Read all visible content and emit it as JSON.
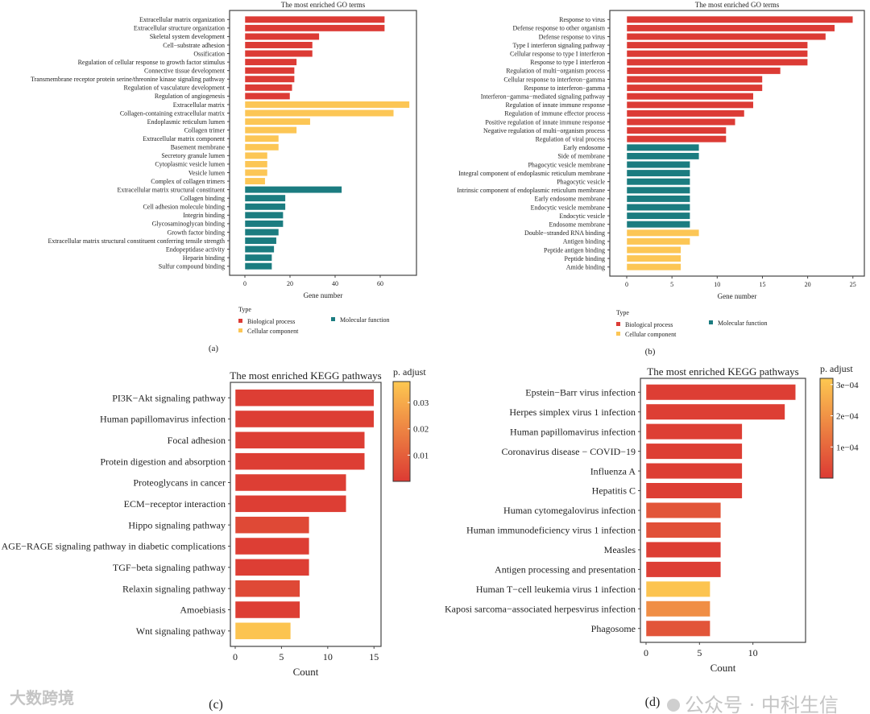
{
  "colors": {
    "bp": "#dc3b35",
    "cc": "#fcc655",
    "mf": "#1b7c80",
    "grad_low": "#dc3a33",
    "grad_high": "#fdc851"
  },
  "watermarks": {
    "left": "大数跨境",
    "right": "公众号 · 中科生信"
  },
  "chart_data": [
    {
      "panel": "(a)",
      "type": "bar",
      "orientation": "horizontal",
      "title": "The most enriched GO terms",
      "xlabel": "Gene number",
      "ylabel": "",
      "xlim": [
        0,
        75
      ],
      "xticks": [
        0,
        20,
        40,
        60
      ],
      "legend": {
        "title": "Type",
        "placement": "bottom-left",
        "entries": [
          {
            "key": "bp",
            "label": "Biological process"
          },
          {
            "key": "mf",
            "label": "Molecular function"
          },
          {
            "key": "cc",
            "label": "Cellular component"
          }
        ]
      },
      "categories": [
        "Extracellular matrix organization",
        "Extracellular structure organization",
        "Skeletal system development",
        "Cell−substrate adhesion",
        "Ossification",
        "Regulation of cellular response to growth factor stimulus",
        "Connective tissue development",
        "Transmembrane receptor protein serine/threonine kinase signaling pathway",
        "Regulation of vasculature development",
        "Regulation of angiogenesis",
        "Extracellular matrix",
        "Collagen-containing extracellular matrix",
        "Endoplasmic reticulum lumen",
        "Collagen trimer",
        "Extracellular matrix component",
        "Basement membrane",
        "Secretory granule lumen",
        "Cytoplasmic vesicle lumen",
        "Vesicle lumen",
        "Complex of collagen trimers",
        "Extracellular matrix structural constituent",
        "Collagen binding",
        "Cell adhesion molecule binding",
        "Integrin binding",
        "Glycosaminoglycan binding",
        "Growth factor binding",
        "Extracellular matrix structural constituent conferring tensile strength",
        "Endopeptidase activity",
        "Heparin binding",
        "Sulfur compound binding"
      ],
      "values": [
        62,
        62,
        33,
        30,
        30,
        23,
        22,
        22,
        21,
        20,
        73,
        66,
        29,
        23,
        15,
        15,
        10,
        10,
        10,
        9,
        43,
        18,
        18,
        17,
        17,
        15,
        14,
        13,
        12,
        12
      ],
      "types": [
        "bp",
        "bp",
        "bp",
        "bp",
        "bp",
        "bp",
        "bp",
        "bp",
        "bp",
        "bp",
        "cc",
        "cc",
        "cc",
        "cc",
        "cc",
        "cc",
        "cc",
        "cc",
        "cc",
        "cc",
        "mf",
        "mf",
        "mf",
        "mf",
        "mf",
        "mf",
        "mf",
        "mf",
        "mf",
        "mf"
      ]
    },
    {
      "panel": "(b)",
      "type": "bar",
      "orientation": "horizontal",
      "title": "The most enriched GO terms",
      "xlabel": "Gene number",
      "ylabel": "",
      "xlim": [
        0,
        26
      ],
      "xticks": [
        0,
        5,
        10,
        15,
        20,
        25
      ],
      "legend": {
        "title": "Type",
        "placement": "bottom-left",
        "entries": [
          {
            "key": "bp",
            "label": "Biological process"
          },
          {
            "key": "mf",
            "label": "Molecular function"
          },
          {
            "key": "cc",
            "label": "Cellular component"
          }
        ]
      },
      "categories": [
        "Response to virus",
        "Defense response to other organism",
        "Defense response to virus",
        "Type I interferon signaling pathway",
        "Cellular response to type I interferon",
        "Response to type I interferon",
        "Regulation of multi−organism process",
        "Cellular response to interferon−gamma",
        "Response to interferon−gamma",
        "Interferon−gamma−mediated signaling pathway",
        "Regulation of innate immune response",
        "Regulation of immune effector process",
        "Positive regulation of innate immune response",
        "Negative regulation of multi−organism process",
        "Regulation of viral process",
        "Early endosome",
        "Side of membrane",
        "Phagocytic vesicle membrane",
        "Integral component of endoplasmic reticulum membrane",
        "Phagocytic vesicle",
        "Intrinsic component of endoplasmic reticulum membrane",
        "Early endosome membrane",
        "Endocytic vesicle membrane",
        "Endocytic vesicle",
        "Endosome membrane",
        "Double−stranded RNA binding",
        "Antigen binding",
        "Peptide antigen binding",
        "Peptide binding",
        "Amide binding"
      ],
      "values": [
        25,
        23,
        22,
        20,
        20,
        20,
        17,
        15,
        15,
        14,
        14,
        13,
        12,
        11,
        11,
        8,
        8,
        7,
        7,
        7,
        7,
        7,
        7,
        7,
        7,
        8,
        7,
        6,
        6,
        6
      ],
      "types": [
        "bp",
        "bp",
        "bp",
        "bp",
        "bp",
        "bp",
        "bp",
        "bp",
        "bp",
        "bp",
        "bp",
        "bp",
        "bp",
        "bp",
        "bp",
        "mf",
        "mf",
        "mf",
        "mf",
        "mf",
        "mf",
        "mf",
        "mf",
        "mf",
        "mf",
        "cc",
        "cc",
        "cc",
        "cc",
        "cc"
      ]
    },
    {
      "panel": "(c)",
      "type": "bar",
      "orientation": "horizontal",
      "title": "The most enriched KEGG pathways",
      "xlabel": "Count",
      "ylabel": "",
      "xlim": [
        0,
        15.5
      ],
      "xticks": [
        0,
        5,
        10,
        15
      ],
      "colorbar": {
        "title": "p. adjust",
        "range": [
          0,
          0.038
        ],
        "ticks": [
          0.01,
          0.02,
          0.03
        ],
        "tick_labels": [
          "0.01",
          "0.02",
          "0.03"
        ],
        "placement": "right"
      },
      "categories": [
        "PI3K−Akt signaling pathway",
        "Human papillomavirus infection",
        "Focal adhesion",
        "Protein digestion and absorption",
        "Proteoglycans in cancer",
        "ECM−receptor interaction",
        "Hippo signaling pathway",
        "AGE−RAGE signaling pathway in diabetic complications",
        "TGF−beta signaling pathway",
        "Relaxin signaling pathway",
        "Amoebiasis",
        "Wnt signaling pathway"
      ],
      "values": [
        15,
        15,
        14,
        14,
        12,
        12,
        8,
        8,
        8,
        7,
        7,
        6
      ],
      "p_adjust": [
        0.001,
        0.001,
        0.001,
        0.001,
        0.001,
        0.001,
        0.004,
        0.001,
        0.001,
        0.004,
        0.001,
        0.037
      ]
    },
    {
      "panel": "(d)",
      "type": "bar",
      "orientation": "horizontal",
      "title": "The most enriched KEGG pathways",
      "xlabel": "Count",
      "ylabel": "",
      "xlim": [
        0,
        14.7
      ],
      "xticks": [
        0,
        5,
        10
      ],
      "colorbar": {
        "title": "p. adjust",
        "range": [
          0,
          0.00032
        ],
        "ticks": [
          0.0001,
          0.0002,
          0.0003
        ],
        "tick_labels": [
          "1e−04",
          "2e−04",
          "3e−04"
        ],
        "placement": "right"
      },
      "categories": [
        "Epstein−Barr virus infection",
        "Herpes simplex virus 1 infection",
        "Human papillomavirus infection",
        "Coronavirus disease − COVID−19",
        "Influenza A",
        "Hepatitis C",
        "Human cytomegalovirus infection",
        "Human immunodeficiency virus 1 infection",
        "Measles",
        "Antigen processing and presentation",
        "Human T−cell leukemia virus 1 infection",
        "Kaposi sarcoma−associated herpesvirus infection",
        "Phagosome"
      ],
      "values": [
        14,
        13,
        9,
        9,
        9,
        9,
        7,
        7,
        7,
        7,
        6,
        6,
        6
      ],
      "p_adjust": [
        1e-05,
        1e-05,
        1e-05,
        1e-05,
        1e-05,
        1e-05,
        6e-05,
        5e-05,
        1e-05,
        1e-05,
        0.00031,
        0.00019,
        6e-05
      ]
    }
  ]
}
